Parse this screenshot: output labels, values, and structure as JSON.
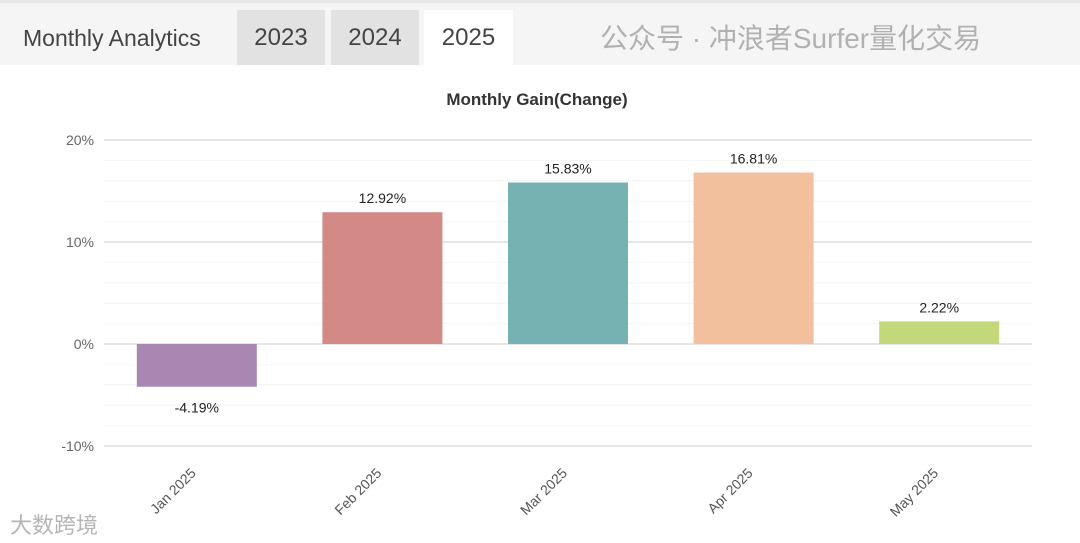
{
  "header": {
    "title": "Monthly Analytics",
    "tabs": [
      {
        "label": "2023",
        "active": false
      },
      {
        "label": "2024",
        "active": false
      },
      {
        "label": "2025",
        "active": true
      }
    ]
  },
  "chart_data": {
    "type": "bar",
    "title": "Monthly Gain(Change)",
    "categories": [
      "Jan 2025",
      "Feb 2025",
      "Mar 2025",
      "Apr 2025",
      "May 2025"
    ],
    "values": [
      -4.19,
      12.92,
      15.83,
      16.81,
      2.22
    ],
    "data_labels": [
      "-4.19%",
      "12.92%",
      "15.83%",
      "16.81%",
      "2.22%"
    ],
    "colors": [
      "#a987b3",
      "#d38986",
      "#77b2b2",
      "#f2c09c",
      "#c3d87a"
    ],
    "ylim": [
      -10,
      20
    ],
    "yticks": [
      {
        "v": 20,
        "label": "20%"
      },
      {
        "v": 10,
        "label": "10%"
      },
      {
        "v": 0,
        "label": "0%"
      },
      {
        "v": -10,
        "label": "-10%"
      }
    ],
    "grid": true,
    "xlabel": "",
    "ylabel": ""
  },
  "watermarks": {
    "left": "大数跨境",
    "right": "公众号 · 冲浪者Surfer量化交易"
  }
}
